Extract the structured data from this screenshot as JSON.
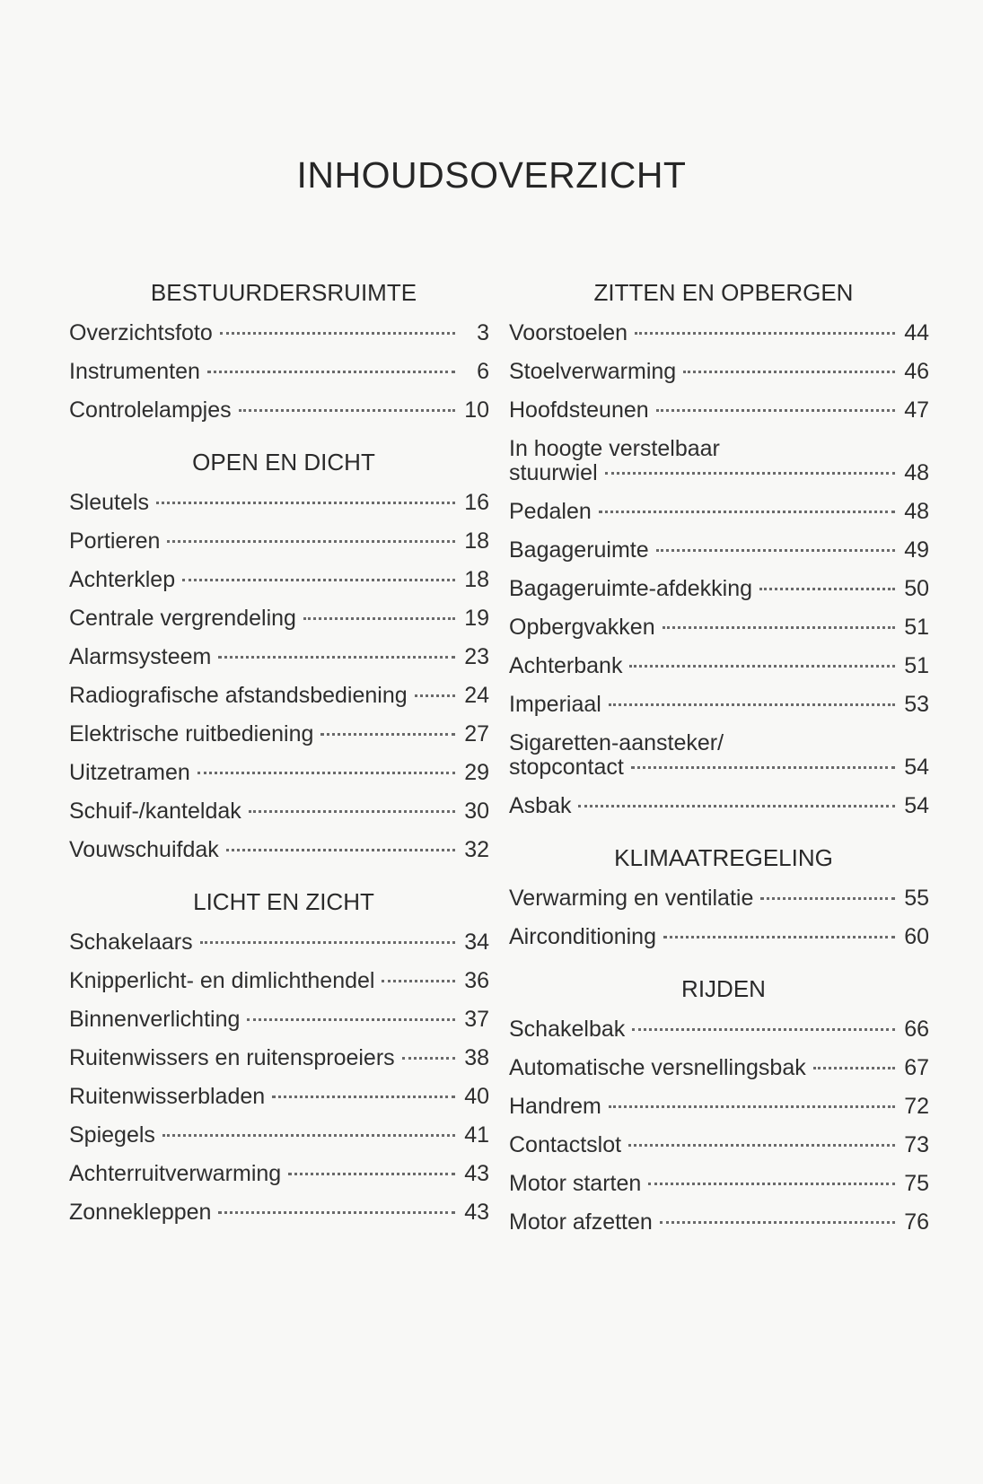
{
  "title": "INHOUDSOVERZICHT",
  "columns": [
    {
      "sections": [
        {
          "heading": "BESTUURDERSRUIMTE",
          "items": [
            {
              "label": "Overzichtsfoto",
              "page": "3"
            },
            {
              "label": "Instrumenten",
              "page": "6"
            },
            {
              "label": "Controlelampjes",
              "page": "10"
            }
          ]
        },
        {
          "heading": "OPEN EN DICHT",
          "items": [
            {
              "label": "Sleutels",
              "page": "16"
            },
            {
              "label": "Portieren",
              "page": "18"
            },
            {
              "label": "Achterklep",
              "page": "18"
            },
            {
              "label": "Centrale vergrendeling",
              "page": "19"
            },
            {
              "label": "Alarmsysteem",
              "page": "23"
            },
            {
              "label": "Radiografische afstandsbediening",
              "page": "24"
            },
            {
              "label": "Elektrische ruitbediening",
              "page": "27"
            },
            {
              "label": "Uitzetramen",
              "page": "29"
            },
            {
              "label": "Schuif-/kanteldak",
              "page": "30"
            },
            {
              "label": "Vouwschuifdak",
              "page": "32"
            }
          ]
        },
        {
          "heading": "LICHT EN ZICHT",
          "items": [
            {
              "label": "Schakelaars",
              "page": "34"
            },
            {
              "label": "Knipperlicht- en dimlichthendel",
              "page": "36"
            },
            {
              "label": "Binnenverlichting",
              "page": "37"
            },
            {
              "label": "Ruitenwissers en ruitensproeiers",
              "page": "38"
            },
            {
              "label": "Ruitenwisserbladen",
              "page": "40"
            },
            {
              "label": "Spiegels",
              "page": "41"
            },
            {
              "label": "Achterruitverwarming",
              "page": "43"
            },
            {
              "label": "Zonnekleppen",
              "page": "43"
            }
          ]
        }
      ]
    },
    {
      "sections": [
        {
          "heading": "ZITTEN EN OPBERGEN",
          "items": [
            {
              "label": "Voorstoelen",
              "page": "44"
            },
            {
              "label": "Stoelverwarming",
              "page": "46"
            },
            {
              "label": "Hoofdsteunen",
              "page": "47"
            },
            {
              "label": "In hoogte verstelbaar\nstuurwiel",
              "page": "48"
            },
            {
              "label": "Pedalen",
              "page": "48"
            },
            {
              "label": "Bagageruimte",
              "page": "49"
            },
            {
              "label": "Bagageruimte-afdekking",
              "page": "50"
            },
            {
              "label": "Opbergvakken",
              "page": "51"
            },
            {
              "label": "Achterbank",
              "page": "51"
            },
            {
              "label": "Imperiaal",
              "page": "53"
            },
            {
              "label": "Sigaretten-aansteker/\nstopcontact",
              "page": "54"
            },
            {
              "label": "Asbak",
              "page": "54"
            }
          ]
        },
        {
          "heading": "KLIMAATREGELING",
          "items": [
            {
              "label": "Verwarming en ventilatie",
              "page": "55"
            },
            {
              "label": "Airconditioning",
              "page": "60"
            }
          ]
        },
        {
          "heading": "RIJDEN",
          "items": [
            {
              "label": "Schakelbak",
              "page": "66"
            },
            {
              "label": "Automatische versnellingsbak",
              "page": "67"
            },
            {
              "label": "Handrem",
              "page": "72"
            },
            {
              "label": "Contactslot",
              "page": "73"
            },
            {
              "label": "Motor starten",
              "page": "75"
            },
            {
              "label": "Motor afzetten",
              "page": "76"
            }
          ]
        }
      ]
    }
  ]
}
